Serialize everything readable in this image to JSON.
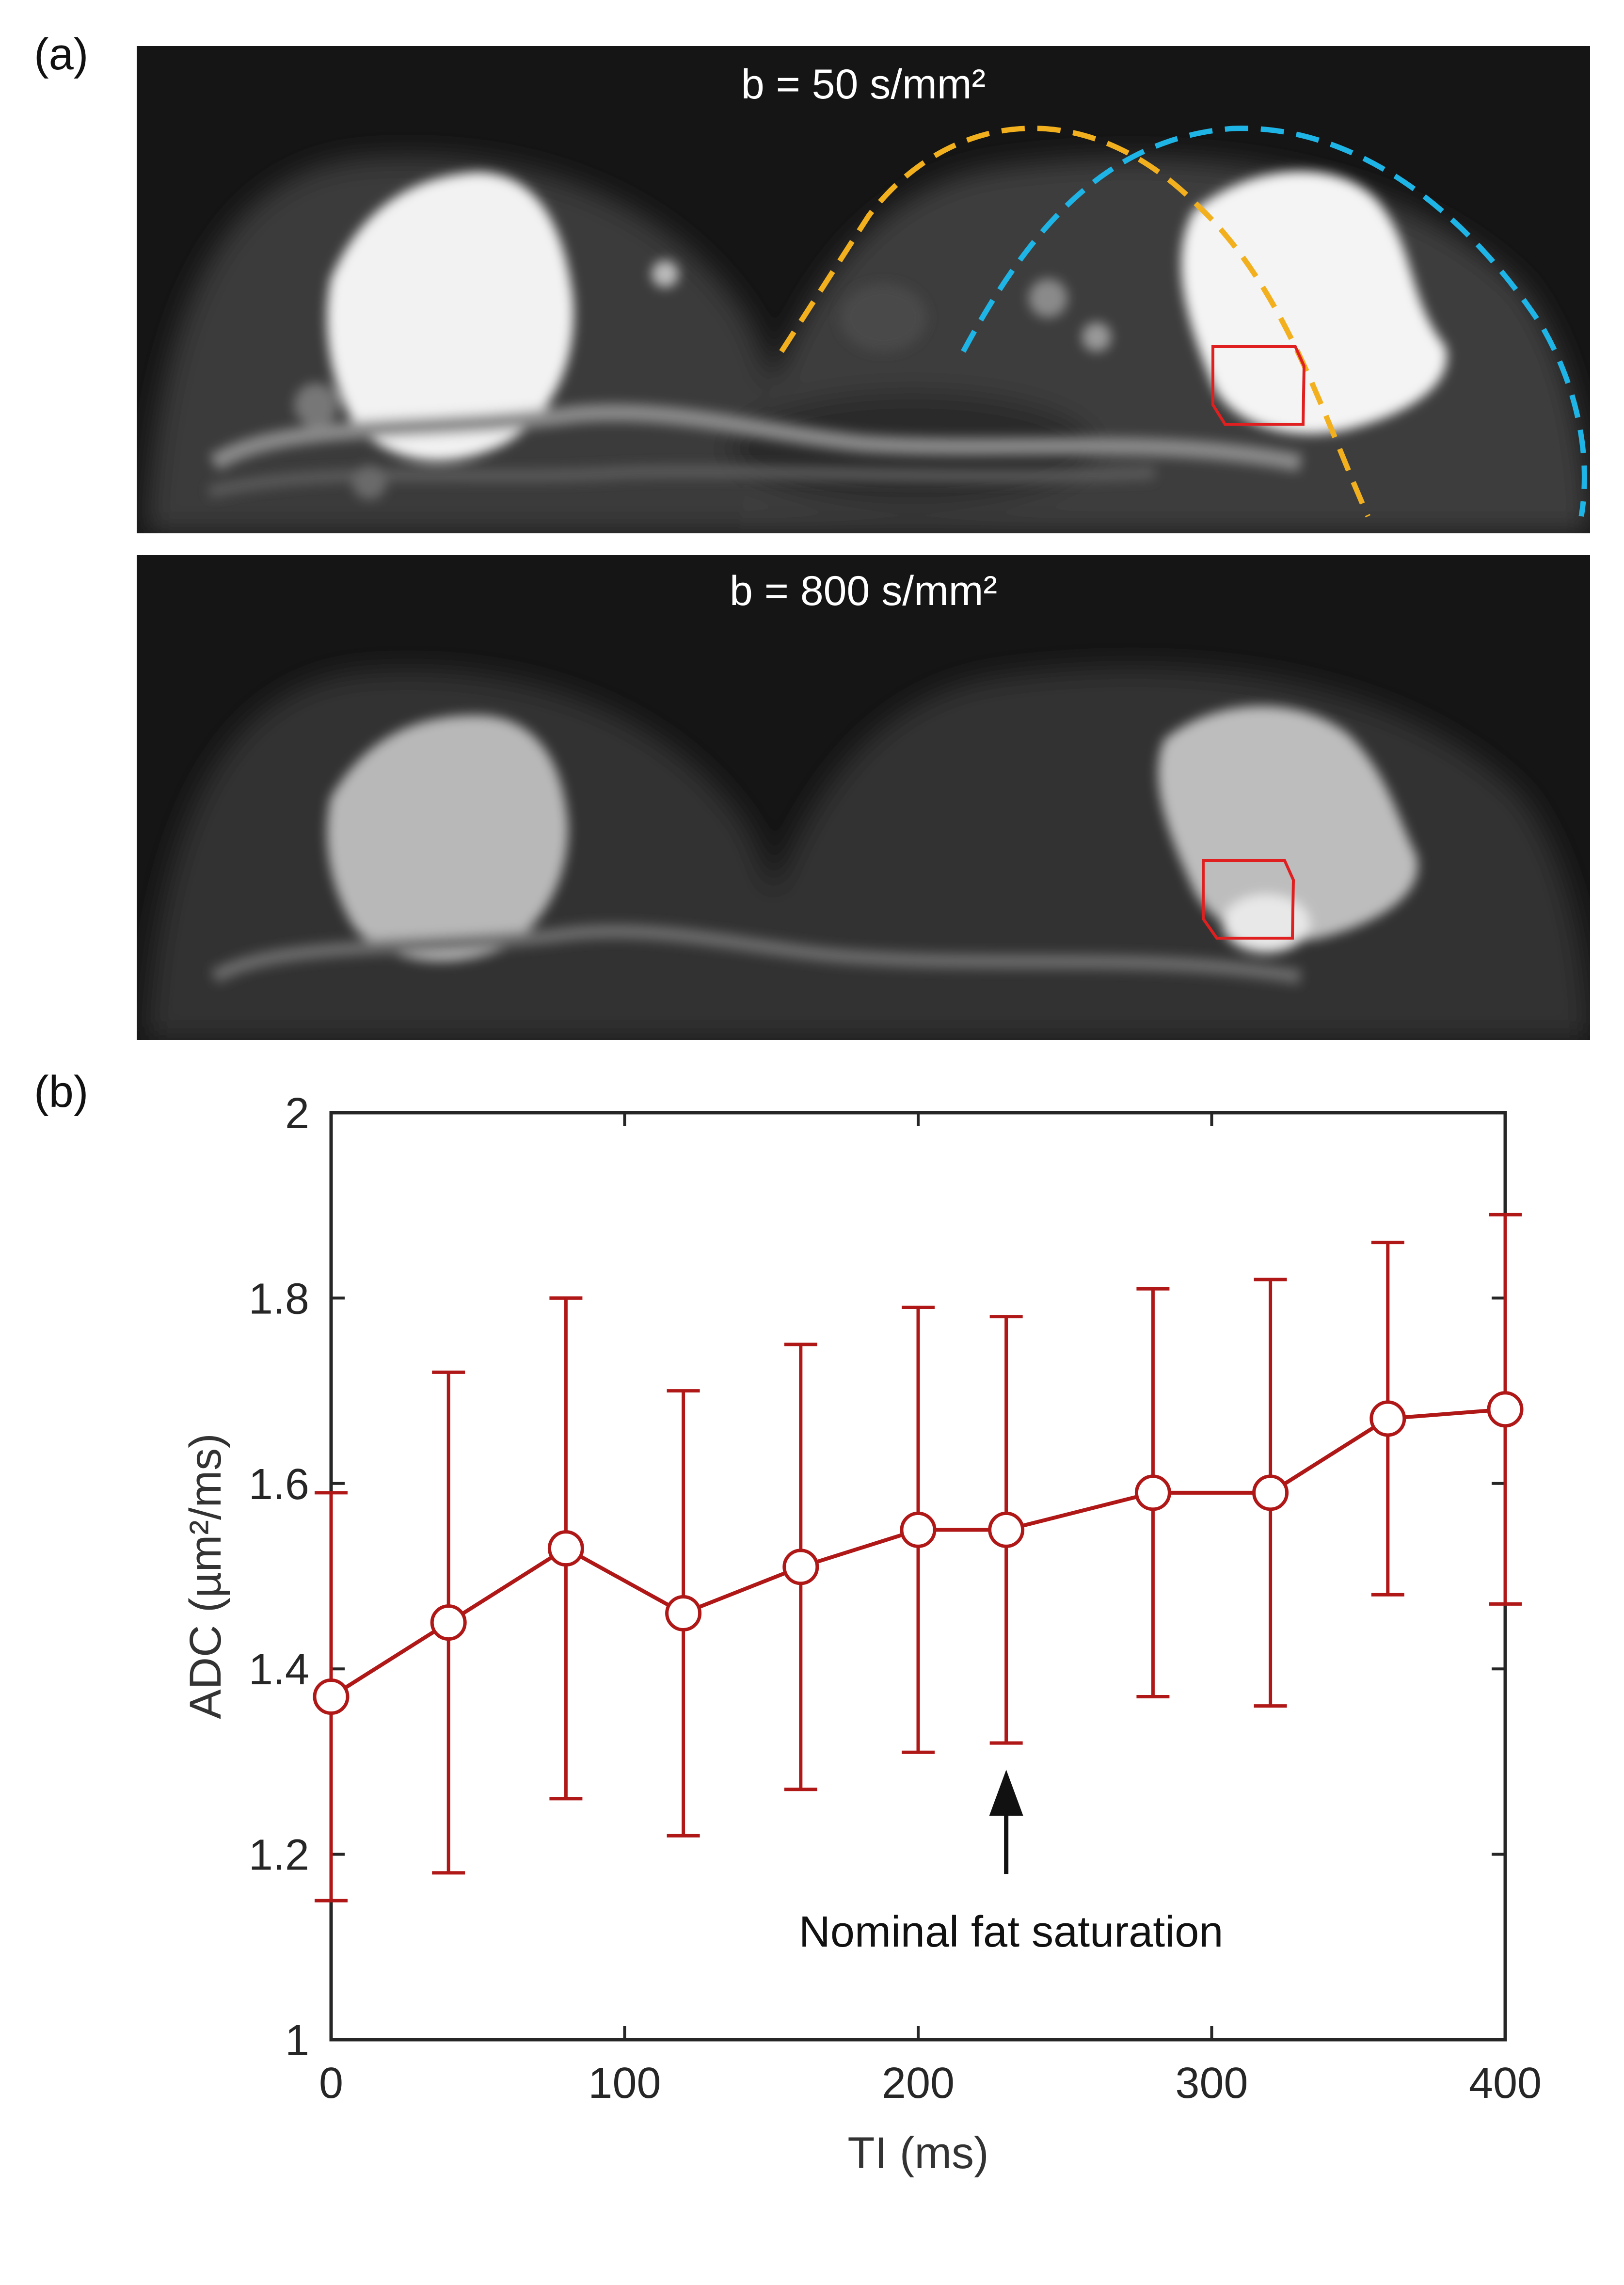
{
  "panels": {
    "a_label": "(a)",
    "b_label": "(b)"
  },
  "images": {
    "top_label": "b = 50 s/mm²",
    "bottom_label": "b = 800 s/mm²",
    "roi_color": "#e02020",
    "orange_curve_color": "#f2b01e",
    "blue_curve_color": "#1fb4e6"
  },
  "chart_data": {
    "type": "line",
    "title": "",
    "xlabel": "TI (ms)",
    "ylabel": "ADC (µm²/ms)",
    "xlim": [
      0,
      400
    ],
    "ylim": [
      1,
      2
    ],
    "xticks": [
      0,
      100,
      200,
      300,
      400
    ],
    "yticks": [
      1,
      1.2,
      1.4,
      1.6,
      1.8,
      2
    ],
    "grid": false,
    "series": [
      {
        "color": "#b01818",
        "marker": "open-circle",
        "x": [
          0,
          40,
          80,
          120,
          160,
          200,
          230,
          280,
          320,
          360,
          400
        ],
        "y": [
          1.37,
          1.45,
          1.53,
          1.46,
          1.51,
          1.55,
          1.55,
          1.59,
          1.59,
          1.67,
          1.68
        ],
        "err_low": [
          1.15,
          1.18,
          1.26,
          1.22,
          1.27,
          1.31,
          1.32,
          1.37,
          1.36,
          1.48,
          1.47
        ],
        "err_high": [
          1.59,
          1.72,
          1.8,
          1.7,
          1.75,
          1.79,
          1.78,
          1.81,
          1.82,
          1.86,
          1.89
        ]
      }
    ],
    "annotation": {
      "text": "Nominal fat saturation",
      "x": 230
    }
  }
}
